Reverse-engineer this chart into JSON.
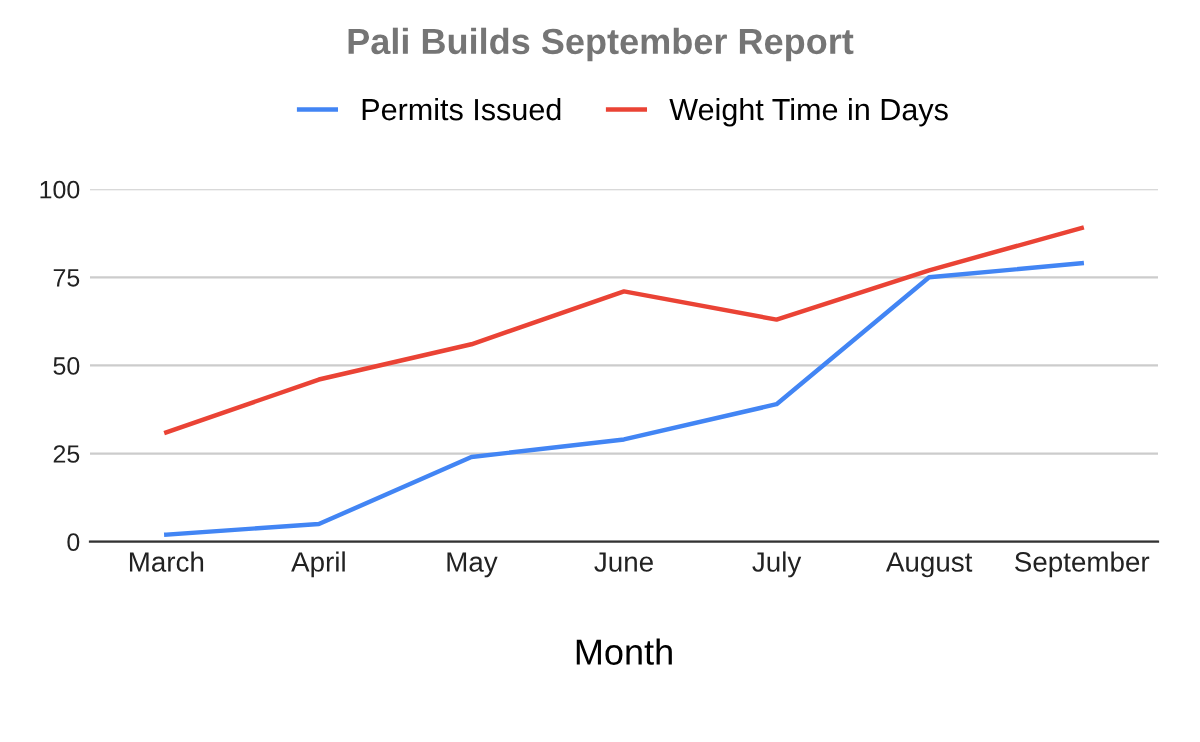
{
  "chart_data": {
    "type": "line",
    "title": "Pali Builds September Report",
    "xlabel": "Month",
    "categories": [
      "March",
      "April",
      "May",
      "June",
      "July",
      "August",
      "September"
    ],
    "series": [
      {
        "name": "Permits Issued",
        "color": "#4285f4",
        "values": [
          2,
          5,
          24,
          29,
          39,
          75,
          79
        ]
      },
      {
        "name": "Weight Time in Days",
        "color": "#ea4335",
        "values": [
          31,
          46,
          56,
          71,
          63,
          77,
          89
        ]
      }
    ],
    "ylim": [
      0,
      100
    ],
    "yticks": [
      0,
      25,
      50,
      75,
      100
    ],
    "grid": "y",
    "legend": "top",
    "marker": "none"
  }
}
